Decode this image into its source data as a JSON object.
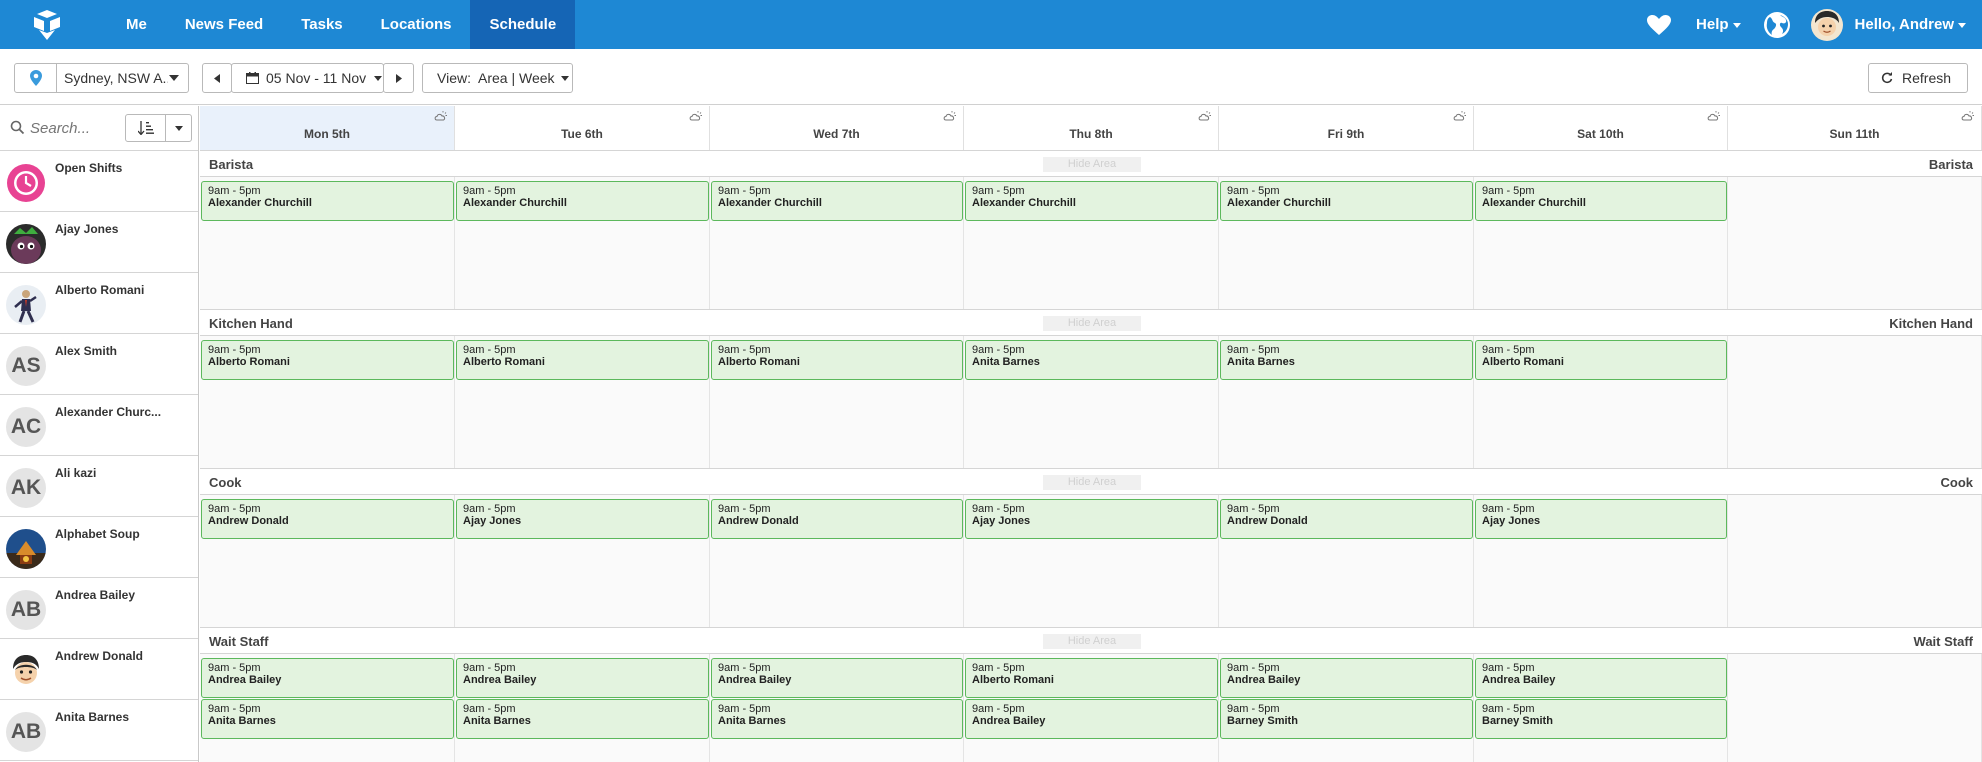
{
  "nav": {
    "items": [
      "Me",
      "News Feed",
      "Tasks",
      "Locations",
      "Schedule"
    ],
    "active": "Schedule",
    "help_label": "Help",
    "greeting": "Hello, Andrew"
  },
  "toolbar": {
    "location": "Sydney, NSW A...",
    "date_range": "05 Nov - 11 Nov",
    "view_label": "View:  Area | Week",
    "refresh_label": "Refresh"
  },
  "sidebar": {
    "search_placeholder": "Search...",
    "staff": [
      {
        "name": "Open Shifts",
        "avatar": "open-shifts-clock-icon"
      },
      {
        "name": "Ajay Jones",
        "avatar": "photo"
      },
      {
        "name": "Alberto Romani",
        "avatar": "photo"
      },
      {
        "name": "Alex Smith",
        "initials": "AS"
      },
      {
        "name": "Alexander Churc...",
        "initials": "AC"
      },
      {
        "name": "Ali kazi",
        "initials": "AK"
      },
      {
        "name": "Alphabet Soup",
        "avatar": "photo"
      },
      {
        "name": "Andrea Bailey",
        "initials": "AB"
      },
      {
        "name": "Andrew Donald",
        "avatar": "photo"
      },
      {
        "name": "Anita Barnes",
        "initials": "AB"
      }
    ]
  },
  "days": [
    "Mon 5th",
    "Tue 6th",
    "Wed 7th",
    "Thu 8th",
    "Fri 9th",
    "Sat 10th",
    "Sun 11th"
  ],
  "hide_area_label": "Hide Area",
  "areas": [
    {
      "name": "Barista",
      "rows": [
        [
          {
            "time": "9am - 5pm",
            "name": "Alexander Churchill"
          },
          {
            "time": "9am - 5pm",
            "name": "Alexander Churchill"
          },
          {
            "time": "9am - 5pm",
            "name": "Alexander Churchill"
          },
          {
            "time": "9am - 5pm",
            "name": "Alexander Churchill"
          },
          {
            "time": "9am - 5pm",
            "name": "Alexander Churchill"
          },
          {
            "time": "9am - 5pm",
            "name": "Alexander Churchill"
          }
        ]
      ]
    },
    {
      "name": "Kitchen Hand",
      "rows": [
        [
          {
            "time": "9am - 5pm",
            "name": "Alberto Romani"
          },
          {
            "time": "9am - 5pm",
            "name": "Alberto Romani"
          },
          {
            "time": "9am - 5pm",
            "name": "Alberto Romani"
          },
          {
            "time": "9am - 5pm",
            "name": "Anita Barnes"
          },
          {
            "time": "9am - 5pm",
            "name": "Anita Barnes"
          },
          {
            "time": "9am - 5pm",
            "name": "Alberto Romani"
          }
        ]
      ]
    },
    {
      "name": "Cook",
      "rows": [
        [
          {
            "time": "9am - 5pm",
            "name": "Andrew Donald"
          },
          {
            "time": "9am - 5pm",
            "name": "Ajay Jones"
          },
          {
            "time": "9am - 5pm",
            "name": "Andrew Donald"
          },
          {
            "time": "9am - 5pm",
            "name": "Ajay Jones"
          },
          {
            "time": "9am - 5pm",
            "name": "Andrew Donald"
          },
          {
            "time": "9am - 5pm",
            "name": "Ajay Jones"
          }
        ]
      ]
    },
    {
      "name": "Wait Staff",
      "rows": [
        [
          {
            "time": "9am - 5pm",
            "name": "Andrea Bailey"
          },
          {
            "time": "9am - 5pm",
            "name": "Andrea Bailey"
          },
          {
            "time": "9am - 5pm",
            "name": "Andrea Bailey"
          },
          {
            "time": "9am - 5pm",
            "name": "Alberto Romani"
          },
          {
            "time": "9am - 5pm",
            "name": "Andrea Bailey"
          },
          {
            "time": "9am - 5pm",
            "name": "Andrea Bailey"
          }
        ],
        [
          {
            "time": "9am - 5pm",
            "name": "Anita Barnes"
          },
          {
            "time": "9am - 5pm",
            "name": "Anita Barnes"
          },
          {
            "time": "9am - 5pm",
            "name": "Anita Barnes"
          },
          {
            "time": "9am - 5pm",
            "name": "Andrea Bailey"
          },
          {
            "time": "9am - 5pm",
            "name": "Barney Smith"
          },
          {
            "time": "9am - 5pm",
            "name": "Barney Smith"
          }
        ]
      ]
    }
  ],
  "colors": {
    "nav_bg": "#1e88d4",
    "nav_active": "#1565b5",
    "shift_bg": "#e3f3df",
    "shift_border": "#5cb85c",
    "today_bg": "#e9f1fb",
    "open_shifts_pink": "#e84393"
  }
}
